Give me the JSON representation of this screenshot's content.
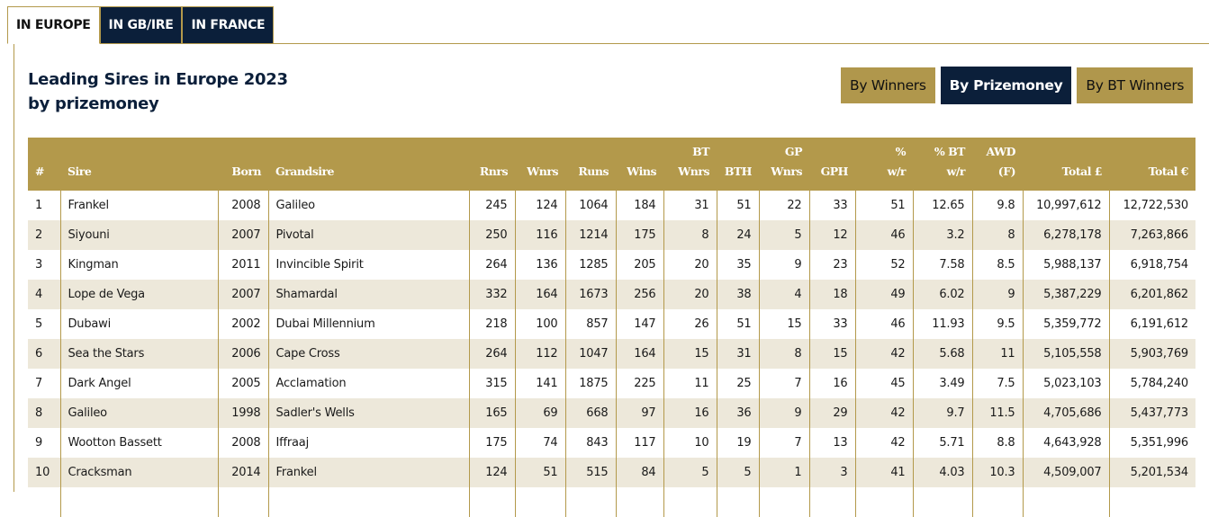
{
  "tabs": [
    {
      "label": "IN EUROPE",
      "active": true
    },
    {
      "label": "IN GB/IRE",
      "active": false
    },
    {
      "label": "IN FRANCE",
      "active": false
    }
  ],
  "title_line1": "Leading Sires in Europe 2023",
  "title_line2": "by prizemoney",
  "sort_buttons": [
    {
      "label": "By Winners",
      "active": false
    },
    {
      "label": "By Prizemoney",
      "active": true
    },
    {
      "label": "By BT Winners",
      "active": false
    }
  ],
  "colors": {
    "gold": "#b3994b",
    "navy": "#0b1f3a",
    "stripe": "#ede8da"
  },
  "table": {
    "columns": [
      [
        "",
        "#"
      ],
      [
        "",
        "Sire"
      ],
      [
        "",
        "Born"
      ],
      [
        "",
        "Grandsire"
      ],
      [
        "",
        "Rnrs"
      ],
      [
        "",
        "Wnrs"
      ],
      [
        "",
        "Runs"
      ],
      [
        "",
        "Wins"
      ],
      [
        "BT",
        "Wnrs"
      ],
      [
        "",
        "BTH"
      ],
      [
        "GP",
        "Wnrs"
      ],
      [
        "",
        "GPH"
      ],
      [
        "%",
        "w/r"
      ],
      [
        "% BT",
        "w/r"
      ],
      [
        "AWD",
        "(F)"
      ],
      [
        "",
        "Total £"
      ],
      [
        "",
        "Total €"
      ]
    ],
    "rows": [
      [
        "1",
        "Frankel",
        "2008",
        "Galileo",
        "245",
        "124",
        "1064",
        "184",
        "31",
        "51",
        "22",
        "33",
        "51",
        "12.65",
        "9.8",
        "10,997,612",
        "12,722,530"
      ],
      [
        "2",
        "Siyouni",
        "2007",
        "Pivotal",
        "250",
        "116",
        "1214",
        "175",
        "8",
        "24",
        "5",
        "12",
        "46",
        "3.2",
        "8",
        "6,278,178",
        "7,263,866"
      ],
      [
        "3",
        "Kingman",
        "2011",
        "Invincible Spirit",
        "264",
        "136",
        "1285",
        "205",
        "20",
        "35",
        "9",
        "23",
        "52",
        "7.58",
        "8.5",
        "5,988,137",
        "6,918,754"
      ],
      [
        "4",
        "Lope de Vega",
        "2007",
        "Shamardal",
        "332",
        "164",
        "1673",
        "256",
        "20",
        "38",
        "4",
        "18",
        "49",
        "6.02",
        "9",
        "5,387,229",
        "6,201,862"
      ],
      [
        "5",
        "Dubawi",
        "2002",
        "Dubai Millennium",
        "218",
        "100",
        "857",
        "147",
        "26",
        "51",
        "15",
        "33",
        "46",
        "11.93",
        "9.5",
        "5,359,772",
        "6,191,612"
      ],
      [
        "6",
        "Sea the Stars",
        "2006",
        "Cape Cross",
        "264",
        "112",
        "1047",
        "164",
        "15",
        "31",
        "8",
        "15",
        "42",
        "5.68",
        "11",
        "5,105,558",
        "5,903,769"
      ],
      [
        "7",
        "Dark Angel",
        "2005",
        "Acclamation",
        "315",
        "141",
        "1875",
        "225",
        "11",
        "25",
        "7",
        "16",
        "45",
        "3.49",
        "7.5",
        "5,023,103",
        "5,784,240"
      ],
      [
        "8",
        "Galileo",
        "1998",
        "Sadler's Wells",
        "165",
        "69",
        "668",
        "97",
        "16",
        "36",
        "9",
        "29",
        "42",
        "9.7",
        "11.5",
        "4,705,686",
        "5,437,773"
      ],
      [
        "9",
        "Wootton Bassett",
        "2008",
        "Iffraaj",
        "175",
        "74",
        "843",
        "117",
        "10",
        "19",
        "7",
        "13",
        "42",
        "5.71",
        "8.8",
        "4,643,928",
        "5,351,996"
      ],
      [
        "10",
        "Cracksman",
        "2014",
        "Frankel",
        "124",
        "51",
        "515",
        "84",
        "5",
        "5",
        "1",
        "3",
        "41",
        "4.03",
        "10.3",
        "4,509,007",
        "5,201,534"
      ],
      [
        "",
        "",
        "",
        "",
        "",
        "",
        "",
        "",
        "",
        "",
        "",
        "",
        "",
        "",
        "",
        "",
        ""
      ]
    ]
  }
}
